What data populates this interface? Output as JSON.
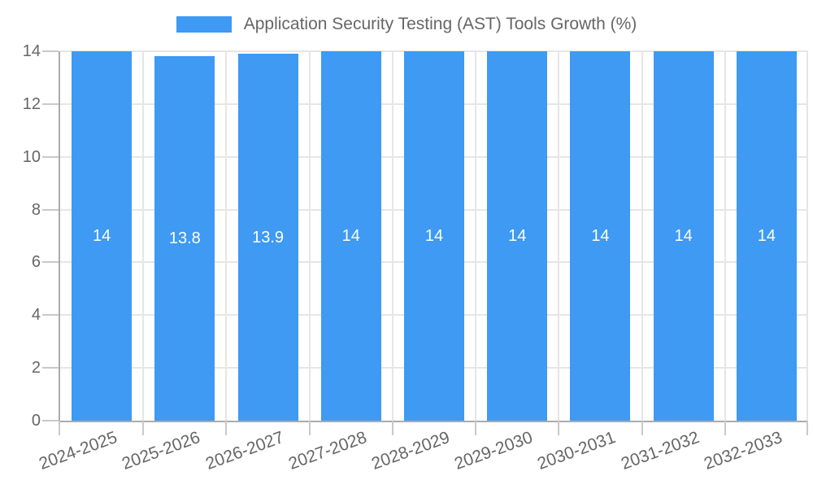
{
  "legend": {
    "label": "Application Security Testing (AST) Tools Growth (%)"
  },
  "colors": {
    "bar": "#3e9af2",
    "grid": "#e6e6e6",
    "axis": "#ababab",
    "tick": "#c9c9c9",
    "text": "#666666",
    "bar_label": "#ffffff",
    "background": "#ffffff"
  },
  "chart_data": {
    "type": "bar",
    "title": "",
    "series_name": "Application Security Testing (AST) Tools Growth (%)",
    "categories": [
      "2024-2025",
      "2025-2026",
      "2026-2027",
      "2027-2028",
      "2028-2029",
      "2029-2030",
      "2030-2031",
      "2031-2032",
      "2032-2033"
    ],
    "values": [
      14,
      13.8,
      13.9,
      14,
      14,
      14,
      14,
      14,
      14
    ],
    "bar_labels": [
      "14",
      "13.8",
      "13.9",
      "14",
      "14",
      "14",
      "14",
      "14",
      "14"
    ],
    "xlabel": "",
    "ylabel": "",
    "ylim": [
      0,
      14
    ],
    "yticks": [
      0,
      2,
      4,
      6,
      8,
      10,
      12,
      14
    ],
    "grid": true,
    "legend_position": "top",
    "x_tick_rotation_deg": -20
  }
}
